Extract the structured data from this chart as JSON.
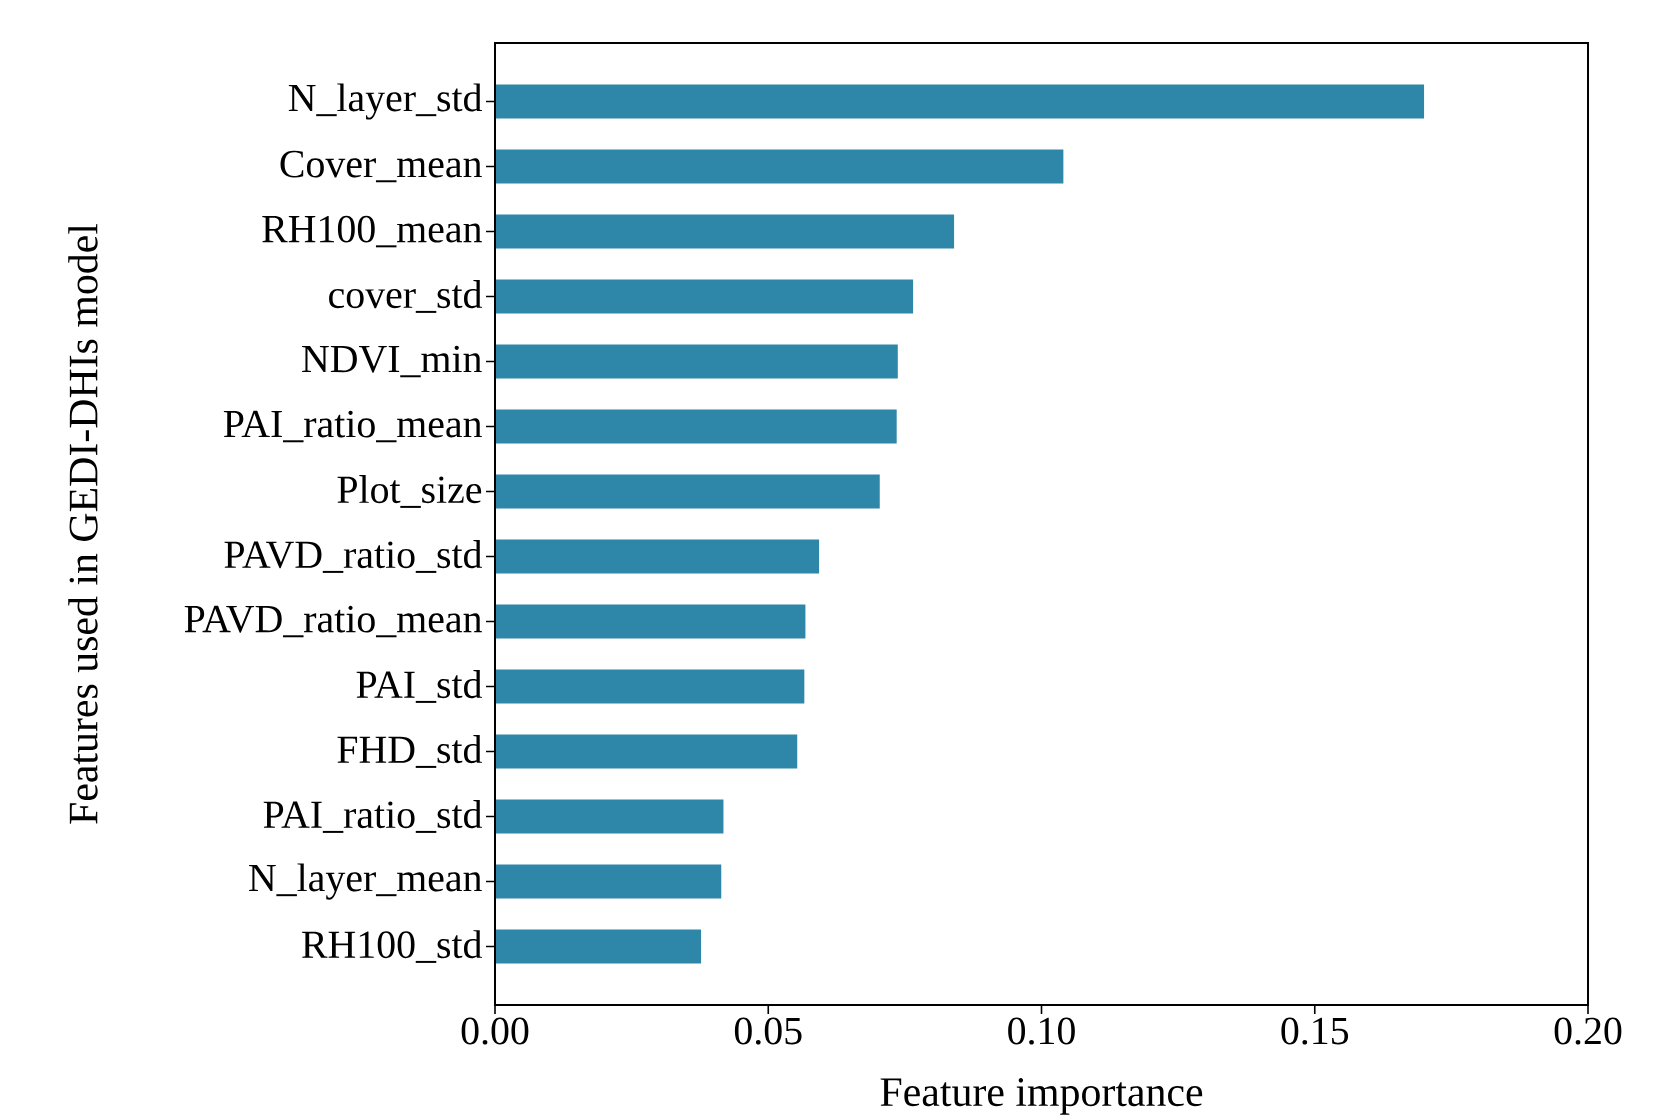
{
  "chart_data": {
    "type": "bar",
    "orientation": "horizontal",
    "xlabel": "Feature importance",
    "ylabel": "Features used in GEDI-DHIs model",
    "categories": [
      "N_layer_std",
      "Cover_mean",
      "RH100_mean",
      "cover_std",
      "NDVI_min",
      "PAI_ratio_mean",
      "Plot_size",
      "PAVD_ratio_std",
      "PAVD_ratio_mean",
      "PAI_std",
      "FHD_std",
      "PAI_ratio_std",
      "N_layer_mean",
      "RH100_std"
    ],
    "values": [
      0.17,
      0.104,
      0.084,
      0.0765,
      0.0737,
      0.0735,
      0.0704,
      0.0593,
      0.0568,
      0.0566,
      0.0553,
      0.0418,
      0.0414,
      0.0377
    ],
    "color": "#2e86a8",
    "xlim": [
      0,
      0.2
    ],
    "xticks": [
      {
        "value": 0,
        "label": "0.00"
      },
      {
        "value": 0.05,
        "label": "0.05"
      },
      {
        "value": 0.1,
        "label": "0.10"
      },
      {
        "value": 0.15,
        "label": "0.15"
      },
      {
        "value": 0.2,
        "label": "0.20"
      }
    ]
  }
}
